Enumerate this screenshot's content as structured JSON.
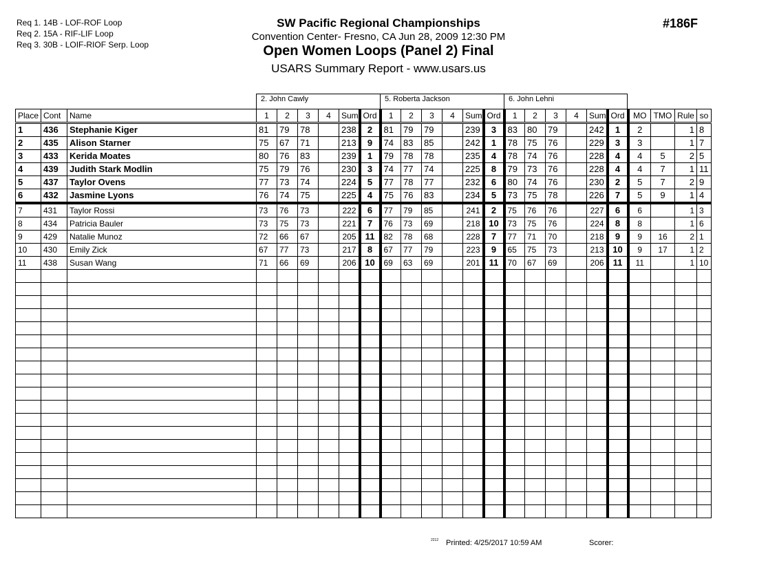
{
  "requirements": [
    "Req  1.  14B - LOF-ROF Loop",
    "Req  2.  15A - RIF-LIF Loop",
    "Req  3.  30B - LOIF-RIOF Serp. Loop"
  ],
  "header": {
    "title": "SW Pacific Regional Championships",
    "location": "Convention Center- Fresno, CA  Jun 28, 2009  12:30 PM",
    "event": "Open Women Loops (Panel 2) Final",
    "report": "USARS Summary Report - www.usars.us",
    "event_code": "#186F"
  },
  "judges": [
    "2.  John  Cawly",
    "5.  Roberta Jackson",
    "6.  John  Lehni"
  ],
  "columns": {
    "place": "Place",
    "cont": "Cont",
    "name": "Name",
    "judge_cols": [
      "1",
      "2",
      "3",
      "4",
      "Sum",
      "Ord"
    ],
    "extra": [
      "MO",
      "TMO",
      "Rule",
      "so"
    ]
  },
  "rows": [
    {
      "place": "1",
      "cont": "436",
      "name": "Stephanie Kiger",
      "j": [
        [
          "81",
          "79",
          "78",
          "",
          "238",
          "2"
        ],
        [
          "81",
          "79",
          "79",
          "",
          "239",
          "3"
        ],
        [
          "83",
          "80",
          "79",
          "",
          "242",
          "1"
        ]
      ],
      "mo": "2",
      "tmo": "",
      "rule": "1",
      "so": "8"
    },
    {
      "place": "2",
      "cont": "435",
      "name": "Alison Starner",
      "j": [
        [
          "75",
          "67",
          "71",
          "",
          "213",
          "9"
        ],
        [
          "74",
          "83",
          "85",
          "",
          "242",
          "1"
        ],
        [
          "78",
          "75",
          "76",
          "",
          "229",
          "3"
        ]
      ],
      "mo": "3",
      "tmo": "",
      "rule": "1",
      "so": "7"
    },
    {
      "place": "3",
      "cont": "433",
      "name": "Kerida Moates",
      "j": [
        [
          "80",
          "76",
          "83",
          "",
          "239",
          "1"
        ],
        [
          "79",
          "78",
          "78",
          "",
          "235",
          "4"
        ],
        [
          "78",
          "74",
          "76",
          "",
          "228",
          "4"
        ]
      ],
      "mo": "4",
      "tmo": "5",
      "rule": "2",
      "so": "5"
    },
    {
      "place": "4",
      "cont": "439",
      "name": "Judith Stark Modlin",
      "j": [
        [
          "75",
          "79",
          "76",
          "",
          "230",
          "3"
        ],
        [
          "74",
          "77",
          "74",
          "",
          "225",
          "8"
        ],
        [
          "79",
          "73",
          "76",
          "",
          "228",
          "4"
        ]
      ],
      "mo": "4",
      "tmo": "7",
      "rule": "1",
      "so": "11"
    },
    {
      "place": "5",
      "cont": "437",
      "name": "Taylor Ovens",
      "j": [
        [
          "77",
          "73",
          "74",
          "",
          "224",
          "5"
        ],
        [
          "77",
          "78",
          "77",
          "",
          "232",
          "6"
        ],
        [
          "80",
          "74",
          "76",
          "",
          "230",
          "2"
        ]
      ],
      "mo": "5",
      "tmo": "7",
      "rule": "2",
      "so": "9"
    },
    {
      "place": "6",
      "cont": "432",
      "name": "Jasmine Lyons",
      "j": [
        [
          "76",
          "74",
          "75",
          "",
          "225",
          "4"
        ],
        [
          "75",
          "76",
          "83",
          "",
          "234",
          "5"
        ],
        [
          "73",
          "75",
          "78",
          "",
          "226",
          "7"
        ]
      ],
      "mo": "5",
      "tmo": "9",
      "rule": "1",
      "so": "4"
    },
    {
      "place": "7",
      "cont": "431",
      "name": "Taylor Rossi",
      "j": [
        [
          "73",
          "76",
          "73",
          "",
          "222",
          "6"
        ],
        [
          "77",
          "79",
          "85",
          "",
          "241",
          "2"
        ],
        [
          "75",
          "76",
          "76",
          "",
          "227",
          "6"
        ]
      ],
      "mo": "6",
      "tmo": "",
      "rule": "1",
      "so": "3"
    },
    {
      "place": "8",
      "cont": "434",
      "name": "Patricia Bauler",
      "j": [
        [
          "73",
          "75",
          "73",
          "",
          "221",
          "7"
        ],
        [
          "76",
          "73",
          "69",
          "",
          "218",
          "10"
        ],
        [
          "73",
          "75",
          "76",
          "",
          "224",
          "8"
        ]
      ],
      "mo": "8",
      "tmo": "",
      "rule": "1",
      "so": "6"
    },
    {
      "place": "9",
      "cont": "429",
      "name": "Natalie Munoz",
      "j": [
        [
          "72",
          "66",
          "67",
          "",
          "205",
          "11"
        ],
        [
          "82",
          "78",
          "68",
          "",
          "228",
          "7"
        ],
        [
          "77",
          "71",
          "70",
          "",
          "218",
          "9"
        ]
      ],
      "mo": "9",
      "tmo": "16",
      "rule": "2",
      "so": "1"
    },
    {
      "place": "10",
      "cont": "430",
      "name": "Emily Zick",
      "j": [
        [
          "67",
          "77",
          "73",
          "",
          "217",
          "8"
        ],
        [
          "67",
          "77",
          "79",
          "",
          "223",
          "9"
        ],
        [
          "65",
          "75",
          "73",
          "",
          "213",
          "10"
        ]
      ],
      "mo": "9",
      "tmo": "17",
      "rule": "1",
      "so": "2"
    },
    {
      "place": "11",
      "cont": "438",
      "name": "Susan Wang",
      "j": [
        [
          "71",
          "66",
          "69",
          "",
          "206",
          "10"
        ],
        [
          "69",
          "63",
          "69",
          "",
          "201",
          "11"
        ],
        [
          "70",
          "67",
          "69",
          "",
          "206",
          "11"
        ]
      ],
      "mo": "11",
      "tmo": "",
      "rule": "1",
      "so": "10"
    }
  ],
  "footer": {
    "code": "2212",
    "printed": "Printed:  4/25/2017  10:59 AM",
    "scorer": "Scorer:"
  }
}
